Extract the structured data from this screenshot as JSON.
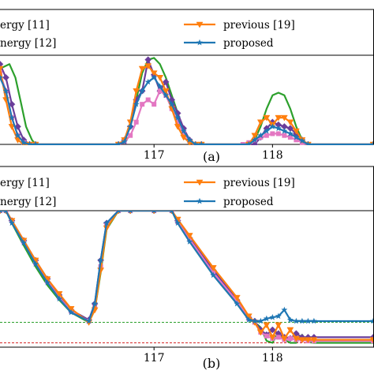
{
  "chart_data": [
    {
      "type": "line",
      "caption": "(a)",
      "x_ticks": [
        "117",
        "118"
      ],
      "xlim": [
        115.7,
        118.85
      ],
      "ylim": [
        0,
        1
      ],
      "grid": false,
      "legend": {
        "placement": "top",
        "entries": [
          {
            "label": "...ergy [11]",
            "color": "#6a3d9a",
            "marker": "diamond"
          },
          {
            "label": "...nergy [12]",
            "color": "#e377c2",
            "marker": "square"
          },
          {
            "label": "previous [19]",
            "color": "#ff7f0e",
            "marker": "triangle-down"
          },
          {
            "label": "proposed",
            "color": "#1f77b4",
            "marker": "star"
          }
        ]
      },
      "series": [
        {
          "color": "#2ca02c",
          "marker": "none",
          "x": [
            115.7,
            115.78,
            115.83,
            115.88,
            115.92,
            115.97,
            116.0,
            116.7,
            116.75,
            116.8,
            116.85,
            116.9,
            116.95,
            117.0,
            117.05,
            117.1,
            117.15,
            117.2,
            117.25,
            117.3,
            117.35,
            117.4,
            117.8,
            117.85,
            117.9,
            117.95,
            118.0,
            118.05,
            118.1,
            118.15,
            118.2,
            118.25,
            118.3,
            118.35,
            118.85
          ],
          "y": [
            0.85,
            0.9,
            0.75,
            0.45,
            0.2,
            0.05,
            0,
            0,
            0.05,
            0.2,
            0.5,
            0.8,
            0.95,
            0.97,
            0.9,
            0.75,
            0.55,
            0.35,
            0.15,
            0.05,
            0,
            0,
            0,
            0.05,
            0.2,
            0.4,
            0.55,
            0.58,
            0.55,
            0.4,
            0.2,
            0.05,
            0,
            0,
            0
          ]
        },
        {
          "color": "#6a3d9a",
          "marker": "diamond",
          "x": [
            115.7,
            115.75,
            115.8,
            115.85,
            115.9,
            115.95,
            116.0,
            116.7,
            116.75,
            116.8,
            116.85,
            116.9,
            116.95,
            117.0,
            117.05,
            117.1,
            117.15,
            117.2,
            117.25,
            117.3,
            117.35,
            117.4,
            117.85,
            117.9,
            117.95,
            118.0,
            118.05,
            118.1,
            118.15,
            118.2,
            118.25,
            118.3,
            118.85
          ],
          "y": [
            0.9,
            0.75,
            0.45,
            0.2,
            0.05,
            0,
            0,
            0,
            0.05,
            0.2,
            0.5,
            0.6,
            0.95,
            0.78,
            0.6,
            0.7,
            0.5,
            0.35,
            0.18,
            0.05,
            0,
            0,
            0,
            0.08,
            0.18,
            0.25,
            0.22,
            0.2,
            0.18,
            0.12,
            0.05,
            0,
            0
          ]
        },
        {
          "color": "#e377c2",
          "marker": "square",
          "x": [
            115.7,
            115.75,
            115.8,
            115.85,
            115.9,
            115.95,
            116.0,
            116.7,
            116.75,
            116.8,
            116.85,
            116.9,
            116.95,
            117.0,
            117.05,
            117.1,
            117.15,
            117.2,
            117.25,
            117.3,
            117.35,
            117.4,
            117.75,
            117.8,
            117.85,
            117.9,
            117.95,
            118.0,
            118.05,
            118.1,
            118.15,
            118.2,
            118.25,
            118.3,
            118.85
          ],
          "y": [
            0.8,
            0.6,
            0.3,
            0.1,
            0.02,
            0,
            0,
            0,
            0.03,
            0.1,
            0.25,
            0.45,
            0.5,
            0.45,
            0.6,
            0.55,
            0.4,
            0.25,
            0.12,
            0.04,
            0,
            0,
            0,
            0.02,
            0.05,
            0.08,
            0.1,
            0.12,
            0.12,
            0.1,
            0.08,
            0.05,
            0.02,
            0,
            0
          ]
        },
        {
          "color": "#ff7f0e",
          "marker": "triangle-down",
          "x": [
            115.7,
            115.75,
            115.8,
            115.85,
            115.9,
            115.95,
            116.0,
            116.7,
            116.75,
            116.8,
            116.85,
            116.9,
            116.95,
            117.0,
            117.05,
            117.1,
            117.15,
            117.2,
            117.25,
            117.3,
            117.35,
            117.4,
            117.8,
            117.85,
            117.9,
            117.95,
            118.0,
            118.05,
            118.1,
            118.15,
            118.2,
            118.25,
            118.3,
            118.85
          ],
          "y": [
            0.85,
            0.5,
            0.2,
            0.05,
            0,
            0,
            0,
            0,
            0.05,
            0.25,
            0.6,
            0.85,
            0.88,
            0.8,
            0.75,
            0.6,
            0.4,
            0.2,
            0.08,
            0.02,
            0,
            0,
            0,
            0.1,
            0.25,
            0.3,
            0.22,
            0.3,
            0.3,
            0.25,
            0.15,
            0.05,
            0,
            0
          ]
        },
        {
          "color": "#1f77b4",
          "marker": "star",
          "x": [
            115.7,
            115.75,
            115.8,
            115.85,
            115.9,
            115.95,
            116.0,
            116.7,
            116.75,
            116.8,
            116.85,
            116.9,
            116.95,
            117.0,
            117.05,
            117.1,
            117.15,
            117.2,
            117.25,
            117.3,
            117.35,
            117.4,
            117.8,
            117.85,
            117.9,
            117.95,
            118.0,
            118.05,
            118.1,
            118.15,
            118.2,
            118.25,
            118.3,
            118.85
          ],
          "y": [
            0.75,
            0.6,
            0.3,
            0.1,
            0.02,
            0,
            0,
            0,
            0.03,
            0.2,
            0.45,
            0.6,
            0.7,
            0.75,
            0.65,
            0.55,
            0.45,
            0.3,
            0.15,
            0.05,
            0,
            0,
            0,
            0.05,
            0.1,
            0.15,
            0.2,
            0.18,
            0.15,
            0.12,
            0.08,
            0.04,
            0,
            0
          ]
        }
      ]
    },
    {
      "type": "line",
      "caption": "(b)",
      "x_ticks": [
        "117",
        "118"
      ],
      "xlim": [
        115.7,
        118.85
      ],
      "ylim": [
        -0.1,
        1
      ],
      "grid": false,
      "reference_lines": [
        {
          "y": 0.1,
          "color": "#2ca02c",
          "style": "dashed"
        },
        {
          "y": -0.065,
          "color": "#d62728",
          "style": "dashed"
        }
      ],
      "legend": {
        "placement": "top",
        "entries": [
          {
            "label": "...ergy [11]",
            "color": "#6a3d9a",
            "marker": "diamond"
          },
          {
            "label": "...nergy [12]",
            "color": "#e377c2",
            "marker": "square"
          },
          {
            "label": "previous [19]",
            "color": "#ff7f0e",
            "marker": "triangle-down"
          },
          {
            "label": "proposed",
            "color": "#1f77b4",
            "marker": "star"
          }
        ]
      },
      "series": [
        {
          "color": "#2ca02c",
          "marker": "none",
          "x": [
            115.7,
            115.75,
            115.8,
            115.9,
            116.0,
            116.1,
            116.2,
            116.3,
            116.45,
            116.5,
            116.55,
            116.6,
            116.7,
            116.8,
            117.0,
            117.15,
            117.2,
            117.3,
            117.5,
            117.7,
            117.8,
            117.85,
            117.9,
            117.95,
            118.0,
            118.05,
            118.1,
            118.15,
            118.2,
            118.25,
            118.3,
            118.35,
            118.85
          ],
          "y": [
            1,
            1,
            0.9,
            0.72,
            0.55,
            0.4,
            0.28,
            0.18,
            0.1,
            0.2,
            0.5,
            0.85,
            1,
            1,
            1,
            1,
            0.9,
            0.75,
            0.48,
            0.25,
            0.12,
            0.1,
            0.06,
            -0.05,
            -0.065,
            0.02,
            -0.04,
            -0.065,
            -0.065,
            0,
            -0.06,
            -0.065,
            -0.065
          ]
        },
        {
          "color": "#6a3d9a",
          "marker": "diamond",
          "x": [
            115.7,
            115.75,
            115.8,
            115.9,
            116.0,
            116.1,
            116.2,
            116.3,
            116.45,
            116.5,
            116.55,
            116.6,
            116.7,
            116.8,
            117.0,
            117.15,
            117.2,
            117.3,
            117.5,
            117.7,
            117.8,
            117.85,
            117.9,
            117.95,
            118.0,
            118.05,
            118.1,
            118.15,
            118.2,
            118.25,
            118.3,
            118.35,
            118.85
          ],
          "y": [
            1,
            1,
            0.92,
            0.76,
            0.6,
            0.45,
            0.32,
            0.2,
            0.12,
            0.25,
            0.6,
            0.9,
            1,
            1,
            1,
            1,
            0.92,
            0.78,
            0.52,
            0.28,
            0.14,
            0.11,
            0.04,
            0,
            0.04,
            0.01,
            -0.02,
            -0.03,
            0.01,
            -0.02,
            -0.02,
            -0.02,
            -0.02
          ]
        },
        {
          "color": "#e377c2",
          "marker": "square",
          "x": [
            115.7,
            115.75,
            115.8,
            115.9,
            116.0,
            116.1,
            116.2,
            116.3,
            116.45,
            116.5,
            116.55,
            116.6,
            116.7,
            116.8,
            117.0,
            117.15,
            117.2,
            117.3,
            117.5,
            117.7,
            117.8,
            117.85,
            117.9,
            117.95,
            118.0,
            118.05,
            118.1,
            118.15,
            118.2,
            118.25,
            118.3,
            118.35,
            118.85
          ],
          "y": [
            1,
            1,
            0.92,
            0.75,
            0.58,
            0.43,
            0.3,
            0.19,
            0.11,
            0.22,
            0.55,
            0.88,
            1,
            1,
            1,
            1,
            0.91,
            0.77,
            0.5,
            0.27,
            0.13,
            0.1,
            0.02,
            -0.01,
            -0.03,
            -0.02,
            -0.04,
            -0.03,
            -0.04,
            -0.04,
            -0.05,
            -0.05,
            -0.05
          ]
        },
        {
          "color": "#ff7f0e",
          "marker": "triangle-down",
          "x": [
            115.7,
            115.75,
            115.8,
            115.9,
            116.0,
            116.1,
            116.2,
            116.3,
            116.45,
            116.5,
            116.55,
            116.6,
            116.7,
            116.8,
            117.0,
            117.15,
            117.2,
            117.3,
            117.5,
            117.7,
            117.8,
            117.85,
            117.9,
            117.95,
            118.0,
            118.05,
            118.1,
            118.15,
            118.2,
            118.25,
            118.3,
            118.35,
            118.85
          ],
          "y": [
            1,
            1,
            0.92,
            0.76,
            0.6,
            0.45,
            0.33,
            0.21,
            0.1,
            0.2,
            0.52,
            0.86,
            1,
            1,
            1,
            1,
            0.93,
            0.8,
            0.54,
            0.3,
            0.15,
            0.1,
            0.02,
            0.08,
            -0.02,
            0.08,
            -0.03,
            0.04,
            -0.03,
            -0.04,
            -0.04,
            -0.04,
            -0.04
          ]
        },
        {
          "color": "#1f77b4",
          "marker": "star",
          "x": [
            115.7,
            115.75,
            115.8,
            115.9,
            116.0,
            116.1,
            116.2,
            116.3,
            116.45,
            116.5,
            116.55,
            116.6,
            116.7,
            116.8,
            117.0,
            117.15,
            117.2,
            117.3,
            117.5,
            117.7,
            117.8,
            117.85,
            117.9,
            117.95,
            118.0,
            118.05,
            118.1,
            118.15,
            118.2,
            118.25,
            118.3,
            118.35,
            118.85
          ],
          "y": [
            1,
            1,
            0.9,
            0.74,
            0.57,
            0.42,
            0.29,
            0.18,
            0.11,
            0.25,
            0.6,
            0.9,
            1,
            1,
            1,
            1,
            0.9,
            0.75,
            0.48,
            0.25,
            0.12,
            0.11,
            0.11,
            0.13,
            0.14,
            0.15,
            0.2,
            0.12,
            0.11,
            0.11,
            0.11,
            0.11,
            0.11
          ]
        }
      ]
    }
  ]
}
